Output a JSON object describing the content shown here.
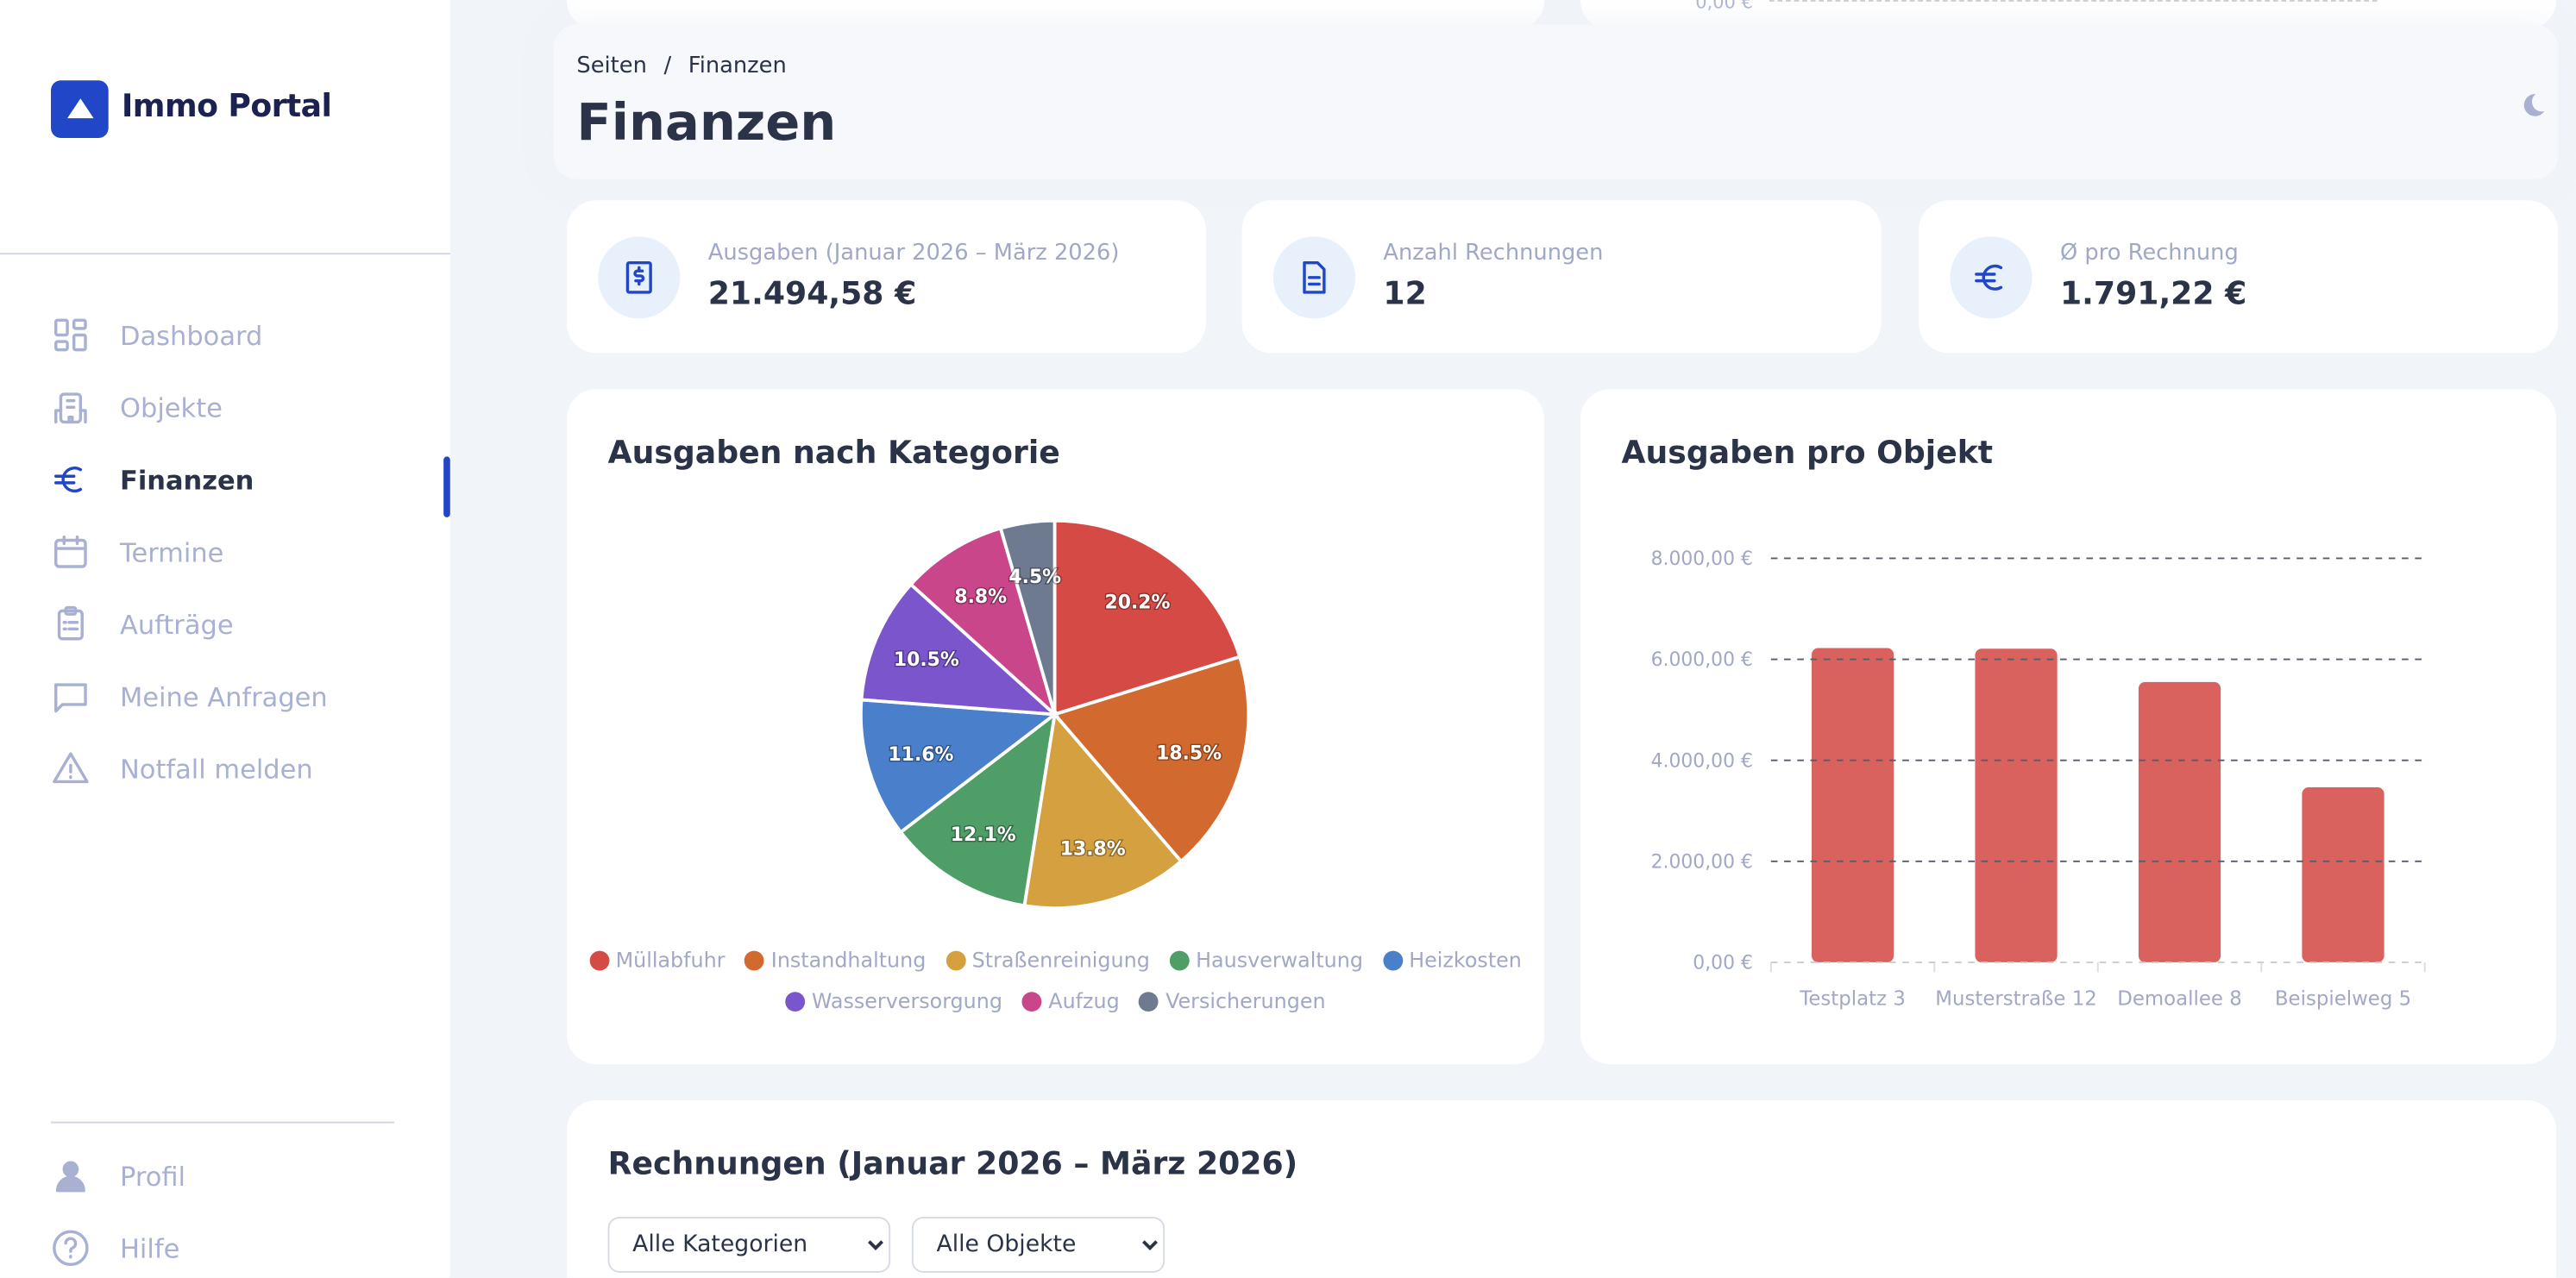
{
  "brand": {
    "name": "Immo Portal",
    "color": "#2146c7"
  },
  "sidebar": {
    "items": [
      {
        "label": "Dashboard",
        "icon": "dashboard-grid-icon"
      },
      {
        "label": "Objekte",
        "icon": "building-icon"
      },
      {
        "label": "Finanzen",
        "icon": "euro-icon",
        "active": true
      },
      {
        "label": "Termine",
        "icon": "calendar-icon"
      },
      {
        "label": "Aufträge",
        "icon": "clipboard-list-icon"
      },
      {
        "label": "Meine Anfragen",
        "icon": "chat-bubble-icon"
      },
      {
        "label": "Notfall melden",
        "icon": "warning-triangle-icon"
      }
    ],
    "bottom": [
      {
        "label": "Profil",
        "icon": "user-icon"
      },
      {
        "label": "Hilfe",
        "icon": "help-circle-icon"
      }
    ]
  },
  "header": {
    "breadcrumb": [
      "Seiten",
      "Finanzen"
    ],
    "separator": "/",
    "title": "Finanzen",
    "theme_toggle_icon": "moon-icon"
  },
  "behind_header": {
    "axis_label": "0,00 €"
  },
  "stats": [
    {
      "label": "Ausgaben (Januar 2026 – März 2026)",
      "value": "21.494,58 €",
      "icon": "receipt-dollar-icon"
    },
    {
      "label": "Anzahl Rechnungen",
      "value": "12",
      "icon": "document-icon"
    },
    {
      "label": "Ø pro Rechnung",
      "value": "1.791,22 €",
      "icon": "euro-icon"
    }
  ],
  "chart_data": [
    {
      "type": "pie",
      "title": "Ausgaben nach Kategorie",
      "legend": "bottom",
      "categories": [
        "Müllabfuhr",
        "Instandhaltung",
        "Straßenreinigung",
        "Hausverwaltung",
        "Heizkosten",
        "Wasserversorgung",
        "Aufzug",
        "Versicherungen"
      ],
      "values": [
        20.2,
        18.5,
        13.8,
        12.1,
        11.6,
        10.5,
        8.8,
        4.5
      ],
      "labels": [
        "20.2%",
        "18.5%",
        "13.8%",
        "12.1%",
        "11.6%",
        "10.5%",
        "8.8%",
        "4.5%"
      ],
      "colors": [
        "#d64a45",
        "#d2692f",
        "#d4a040",
        "#4f9e68",
        "#4a7fcb",
        "#7b55cc",
        "#c9468a",
        "#6e7a8f"
      ]
    },
    {
      "type": "bar",
      "title": "Ausgaben pro Objekt",
      "grid": true,
      "categories": [
        "Testplatz 3",
        "Musterstraße 12",
        "Demoallee 8",
        "Beispielweg 5"
      ],
      "values": [
        6224,
        6211,
        5550,
        3465
      ],
      "ylim": [
        0,
        8000
      ],
      "yticks": [
        0,
        2000,
        4000,
        6000,
        8000
      ],
      "ytick_labels": [
        "0,00 €",
        "2.000,00 €",
        "4.000,00 €",
        "6.000,00 €",
        "8.000,00 €"
      ],
      "color": "#d9625e"
    }
  ],
  "invoices": {
    "title": "Rechnungen (Januar 2026 – März 2026)",
    "filters": [
      {
        "value": "Alle Kategorien"
      },
      {
        "value": "Alle Objekte"
      }
    ]
  }
}
